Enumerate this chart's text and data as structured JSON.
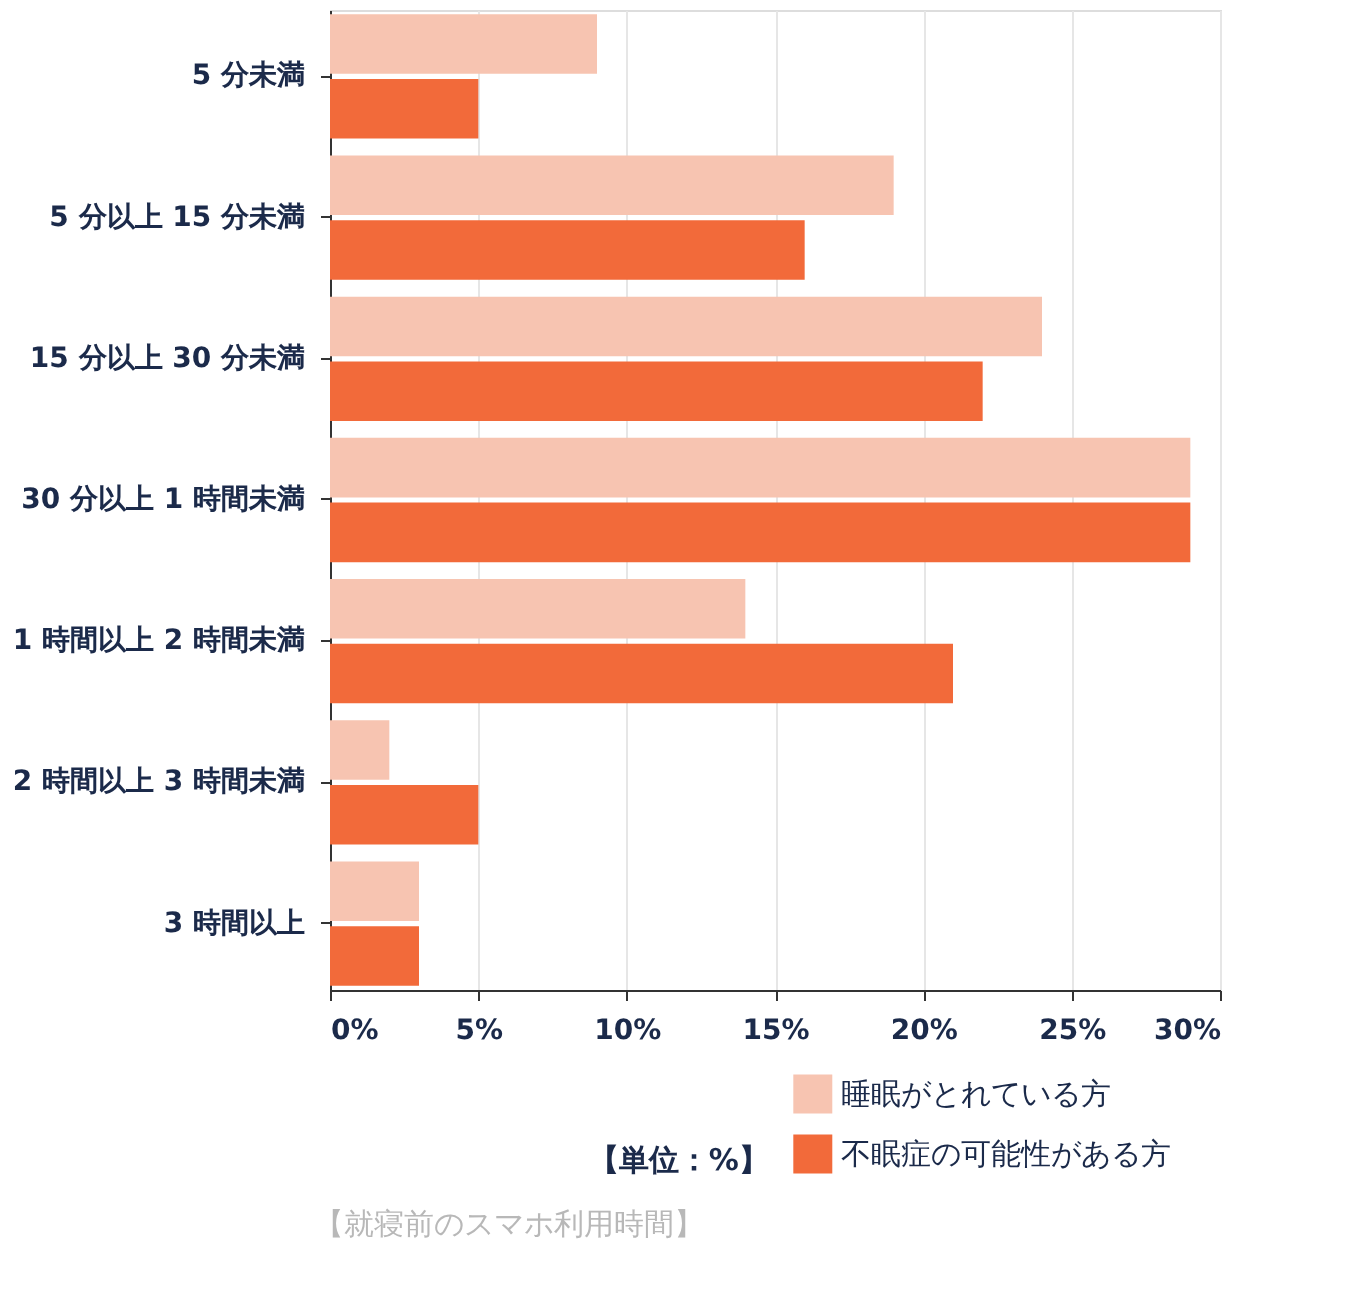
{
  "chart_data": {
    "type": "bar",
    "orientation": "horizontal",
    "categories": [
      "5 分未満",
      "5 分以上 15 分未満",
      "15 分以上 30 分未満",
      "30 分以上 1 時間未満",
      "1 時間以上 2 時間未満",
      "2 時間以上 3 時間未満",
      "3 時間以上"
    ],
    "series": [
      {
        "name": "睡眠がとれている方",
        "color": "#f7c4b1",
        "values": [
          9,
          19,
          24,
          29,
          14,
          2,
          3
        ]
      },
      {
        "name": "不眠症の可能性がある方",
        "color": "#f26a3a",
        "values": [
          5,
          16,
          22,
          29,
          21,
          5,
          3
        ]
      }
    ],
    "xlim": [
      0,
      30
    ],
    "xticks": [
      {
        "value": 0,
        "label": "0%"
      },
      {
        "value": 5,
        "label": "5%"
      },
      {
        "value": 10,
        "label": "10%"
      },
      {
        "value": 15,
        "label": "15%"
      },
      {
        "value": 20,
        "label": "20%"
      },
      {
        "value": 25,
        "label": "25%"
      },
      {
        "value": 30,
        "label": "30%"
      }
    ],
    "grid": "x",
    "legend": "bottom right",
    "annotations": [
      "【単位：%】",
      "【就寝前のスマホ利用時間】"
    ]
  }
}
